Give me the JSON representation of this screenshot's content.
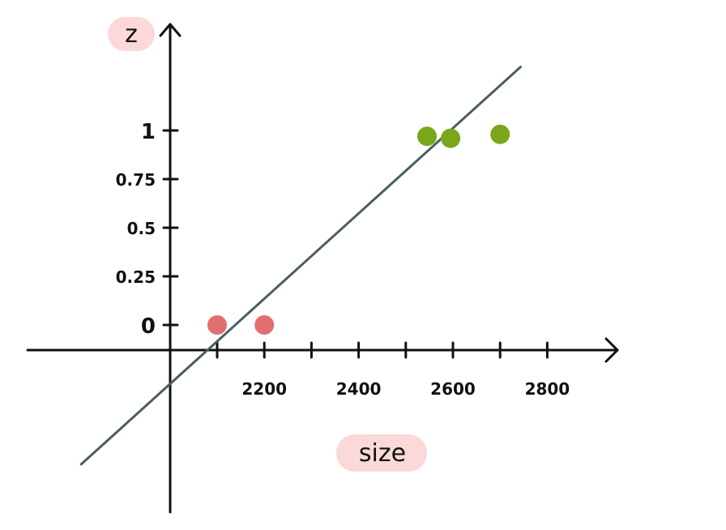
{
  "chart_data": {
    "type": "scatter",
    "title": "",
    "xlabel": "size",
    "ylabel": "z",
    "xlim": [
      1890,
      2960
    ],
    "ylim": [
      -0.98,
      1.64
    ],
    "x_ticks": [
      2100,
      2200,
      2300,
      2400,
      2500,
      2600,
      2700,
      2800
    ],
    "x_tick_labels": [
      "2200",
      "2400",
      "2600",
      "2800"
    ],
    "x_tick_label_positions": [
      2200,
      2400,
      2600,
      2800
    ],
    "y_ticks": [
      0,
      0.25,
      0.5,
      0.75,
      1
    ],
    "y_tick_labels": [
      "0",
      "0.25",
      "0.5",
      "0.75",
      "1"
    ],
    "grid": false,
    "series": [
      {
        "color": "#e07070",
        "points": [
          {
            "x": 2100,
            "y": 0
          },
          {
            "x": 2200,
            "y": 0
          }
        ]
      },
      {
        "color": "#7aa61a",
        "points": [
          {
            "x": 2545,
            "y": 0.97
          },
          {
            "x": 2595,
            "y": 0.96
          },
          {
            "x": 2700,
            "y": 0.98
          }
        ]
      }
    ],
    "trend_line": {
      "color": "#4a5f5f",
      "from": {
        "x": 1810,
        "y": -0.72
      },
      "to": {
        "x": 2745,
        "y": 1.33
      }
    },
    "label_highlight_color": "#fbd9d9"
  }
}
